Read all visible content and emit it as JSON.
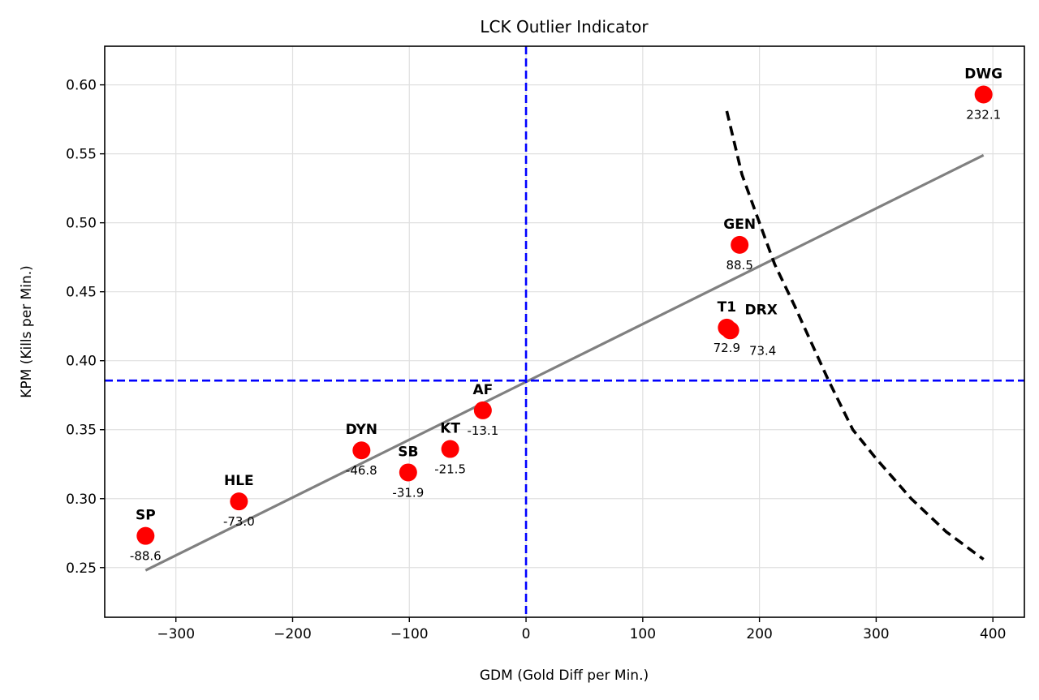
{
  "chart_data": {
    "type": "scatter",
    "title": "LCK Outlier Indicator",
    "xlabel": "GDM (Gold Diff per Min.)",
    "ylabel": "KPM (Kills per Min.)",
    "xlim": [
      -361,
      427
    ],
    "ylim": [
      0.214,
      0.628
    ],
    "xticks": [
      -300,
      -200,
      -100,
      0,
      100,
      200,
      300,
      400
    ],
    "xtick_labels": [
      "−300",
      "−200",
      "−100",
      "0",
      "100",
      "200",
      "300",
      "400"
    ],
    "yticks": [
      0.25,
      0.3,
      0.35,
      0.4,
      0.45,
      0.5,
      0.55,
      0.6
    ],
    "ytick_labels": [
      "0.25",
      "0.30",
      "0.35",
      "0.40",
      "0.45",
      "0.50",
      "0.55",
      "0.60"
    ],
    "grid": true,
    "point_color": "#ff0000",
    "points": [
      {
        "team": "SP",
        "gdm": -326,
        "kpm": 0.273,
        "value_label": "-88.6"
      },
      {
        "team": "HLE",
        "gdm": -246,
        "kpm": 0.298,
        "value_label": "-73.0"
      },
      {
        "team": "DYN",
        "gdm": -141,
        "kpm": 0.335,
        "value_label": "-46.8"
      },
      {
        "team": "SB",
        "gdm": -101,
        "kpm": 0.319,
        "value_label": "-31.9"
      },
      {
        "team": "KT",
        "gdm": -65,
        "kpm": 0.336,
        "value_label": "-21.5"
      },
      {
        "team": "AF",
        "gdm": -37,
        "kpm": 0.364,
        "value_label": "-13.1"
      },
      {
        "team": "T1",
        "gdm": 172,
        "kpm": 0.424,
        "value_label": "72.9"
      },
      {
        "team": "DRX",
        "gdm": 175,
        "kpm": 0.422,
        "value_label": "73.4"
      },
      {
        "team": "GEN",
        "gdm": 183,
        "kpm": 0.484,
        "value_label": "88.5"
      },
      {
        "team": "DWG",
        "gdm": 392,
        "kpm": 0.593,
        "value_label": "232.1"
      }
    ],
    "regression_line": {
      "color": "#808080",
      "x": [
        -326,
        392
      ],
      "y": [
        0.248,
        0.549
      ]
    },
    "reference_lines": {
      "color": "#0000ff",
      "vertical_gdm": 0,
      "horizontal_kpm": 0.3856
    },
    "threshold_curve": {
      "color": "#000000",
      "x": [
        172,
        185,
        200,
        213,
        230,
        259,
        280,
        300,
        330,
        360,
        392
      ],
      "y": [
        0.581,
        0.535,
        0.5,
        0.47,
        0.44,
        0.386,
        0.35,
        0.329,
        0.3,
        0.276,
        0.256
      ]
    }
  }
}
